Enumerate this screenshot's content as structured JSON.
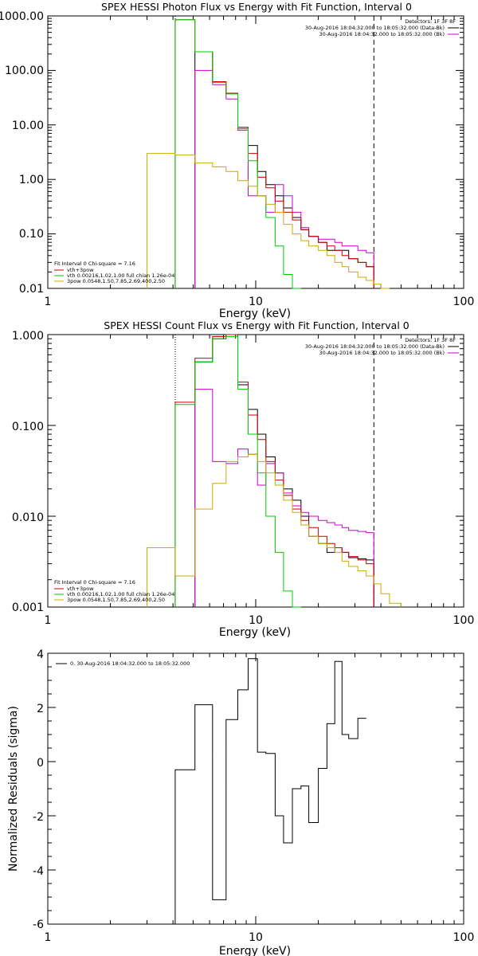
{
  "chart_data": [
    {
      "type": "line",
      "title": "SPEX HESSI Photon Flux vs Energy with Fit Function, Interval 0",
      "xlabel": "Energy (keV)",
      "ylabel": "",
      "xscale": "log",
      "yscale": "log",
      "xlim": [
        1,
        100
      ],
      "ylim": [
        0.01,
        1000
      ],
      "x_ticks": [
        "1",
        "10",
        "100"
      ],
      "y_ticks": [
        "1000.00",
        "100.00",
        "10.00",
        "1.00",
        "0.10",
        "0.01"
      ],
      "grid": false,
      "legend_position": "top-right",
      "legend": {
        "header": "Detectors: 1F 3F 8F",
        "entries": [
          {
            "label": "30-Aug-2016 18:04:32.000 to 18:05:32.000 (Data-Bk)",
            "color": "#000000"
          },
          {
            "label": "30-Aug-2016 18:04:32.000 to 18:05:32.000 (Bk)",
            "color": "#cc00cc"
          }
        ]
      },
      "fit_legend": {
        "header": "Fit Interval 0 Chi-square = 7.16",
        "entries": [
          {
            "label": "vth+3pow",
            "color": "#cc0000"
          },
          {
            "label": "vth 0.00216,1.02,1.00 full chian 1.26e-04",
            "color": "#00cc00"
          },
          {
            "label": "3pow 0.0548,1.50,7.85,2.69,400,2.50",
            "color": "#ccaa00"
          }
        ]
      },
      "vlines": [
        {
          "x": 4.1,
          "style": "dotted",
          "color": "#000000"
        },
        {
          "x": 37.0,
          "style": "dashed",
          "color": "#000000"
        }
      ],
      "bin_edges": [
        3.0,
        4.1,
        5.1,
        6.2,
        7.2,
        8.2,
        9.2,
        10.2,
        11.2,
        12.4,
        13.6,
        15.0,
        16.5,
        18.0,
        20.0,
        22.0,
        24.0,
        26.0,
        28.0,
        31.0,
        34.0,
        37.0,
        40.0,
        44.0,
        50.0
      ],
      "series": [
        {
          "name": "Data-Bk",
          "color": "#000000",
          "start_bin": 2,
          "values": [
            220,
            62,
            38,
            9,
            4.2,
            1.4,
            0.8,
            0.5,
            0.3,
            0.2,
            0.12,
            0.09,
            0.07,
            0.05,
            0.05,
            0.05,
            0.035,
            0.03,
            0.025
          ]
        },
        {
          "name": "Bk",
          "color": "#cc00cc",
          "start_bin": 2,
          "values": [
            100,
            55,
            30,
            8,
            0.5,
            0.5,
            0.25,
            0.8,
            0.5,
            0.25,
            0.13,
            0.09,
            0.08,
            0.08,
            0.07,
            0.06,
            0.06,
            0.05,
            0.045
          ]
        },
        {
          "name": "vth+3pow",
          "color": "#cc0000",
          "start_bin": 1,
          "values": [
            850,
            220,
            62,
            38,
            9,
            3,
            1.1,
            0.7,
            0.4,
            0.25,
            0.18,
            0.12,
            0.09,
            0.07,
            0.06,
            0.05,
            0.04,
            0.035,
            0.03,
            0.025
          ]
        },
        {
          "name": "vth",
          "color": "#00cc00",
          "start_bin": 1,
          "values": [
            850,
            220,
            60,
            37,
            8.5,
            2.2,
            0.5,
            0.2,
            0.06,
            0.018,
            0.01
          ]
        },
        {
          "name": "3pow",
          "color": "#ccaa00",
          "start_bin": 0,
          "values": [
            3.0,
            2.8,
            2.0,
            1.7,
            1.4,
            0.95,
            0.75,
            0.5,
            0.35,
            0.25,
            0.15,
            0.1,
            0.075,
            0.06,
            0.05,
            0.04,
            0.03,
            0.025,
            0.02,
            0.016,
            0.014,
            0.012,
            0.01
          ]
        }
      ]
    },
    {
      "type": "line",
      "title": "SPEX HESSI Count Flux vs Energy with Fit Function, Interval 0",
      "xlabel": "Energy (keV)",
      "ylabel": "",
      "xscale": "log",
      "yscale": "log",
      "xlim": [
        1,
        100
      ],
      "ylim": [
        0.001,
        1
      ],
      "x_ticks": [
        "1",
        "10",
        "100"
      ],
      "y_ticks": [
        "1.000",
        "0.100",
        "0.010",
        "0.001"
      ],
      "grid": false,
      "legend_position": "top-right",
      "legend": {
        "header": "Detectors: 1F 3F 8F",
        "entries": [
          {
            "label": "30-Aug-2016 18:04:32.000 to 18:05:32.000 (Data-Bk)",
            "color": "#000000"
          },
          {
            "label": "30-Aug-2016 18:04:32.000 to 18:05:32.000 (Bk)",
            "color": "#cc00cc"
          }
        ]
      },
      "fit_legend": {
        "header": "Fit Interval 0 Chi-square = 7.16",
        "entries": [
          {
            "label": "vth+3pow",
            "color": "#cc0000"
          },
          {
            "label": "vth 0.00216,1.02,1.00 full chian 1.26e-04",
            "color": "#00cc00"
          },
          {
            "label": "3pow 0.0548,1.50,7.85,2.69,400,2.50",
            "color": "#ccaa00"
          }
        ]
      },
      "vlines": [
        {
          "x": 4.1,
          "style": "dotted",
          "color": "#000000"
        },
        {
          "x": 37.0,
          "style": "dashed",
          "color": "#000000"
        }
      ],
      "bin_edges": [
        3.0,
        4.1,
        5.1,
        6.2,
        7.2,
        8.2,
        9.2,
        10.2,
        11.2,
        12.4,
        13.6,
        15.0,
        16.5,
        18.0,
        20.0,
        22.0,
        24.0,
        26.0,
        28.0,
        31.0,
        34.0,
        37.0,
        40.0,
        44.0,
        50.0
      ],
      "series": [
        {
          "name": "Data-Bk",
          "color": "#000000",
          "start_bin": 2,
          "values": [
            0.5,
            0.9,
            0.95,
            0.28,
            0.15,
            0.08,
            0.045,
            0.03,
            0.02,
            0.015,
            0.01,
            0.006,
            0.005,
            0.004,
            0.0045,
            0.004,
            0.0035,
            0.0034,
            0.0033
          ]
        },
        {
          "name": "Bk",
          "color": "#cc00cc",
          "start_bin": 2,
          "values": [
            0.25,
            0.04,
            0.038,
            0.055,
            0.048,
            0.022,
            0.038,
            0.03,
            0.018,
            0.013,
            0.011,
            0.01,
            0.009,
            0.0085,
            0.008,
            0.0075,
            0.007,
            0.0068,
            0.0066
          ]
        },
        {
          "name": "vth+3pow",
          "color": "#cc0000",
          "start_bin": 1,
          "values": [
            0.18,
            0.55,
            0.95,
            1.0,
            0.3,
            0.13,
            0.07,
            0.04,
            0.025,
            0.017,
            0.012,
            0.009,
            0.0075,
            0.006,
            0.005,
            0.0045,
            0.004,
            0.0036,
            0.0033,
            0.003
          ]
        },
        {
          "name": "vth",
          "color": "#00cc00",
          "start_bin": 1,
          "values": [
            0.17,
            0.5,
            0.9,
            0.95,
            0.25,
            0.08,
            0.03,
            0.01,
            0.004,
            0.0015,
            0.001
          ]
        },
        {
          "name": "3pow",
          "color": "#ccaa00",
          "start_bin": 0,
          "values": [
            0.0045,
            0.0022,
            0.012,
            0.023,
            0.04,
            0.045,
            0.048,
            0.04,
            0.03,
            0.022,
            0.015,
            0.011,
            0.008,
            0.006,
            0.005,
            0.0045,
            0.004,
            0.0032,
            0.0028,
            0.0025,
            0.0022,
            0.0018,
            0.0014,
            0.0011
          ]
        }
      ]
    },
    {
      "type": "line",
      "title": "",
      "xlabel": "Energy (keV)",
      "ylabel": "Normalized Residuals (sigma)",
      "xscale": "log",
      "yscale": "linear",
      "xlim": [
        1,
        100
      ],
      "ylim": [
        -6,
        4
      ],
      "x_ticks": [
        "1",
        "10",
        "100"
      ],
      "y_ticks": [
        "4",
        "2",
        "0",
        "-2",
        "-4",
        "-6"
      ],
      "grid": false,
      "legend_position": "top-left",
      "legend": {
        "header": "",
        "entries": [
          {
            "label": "0. 30-Aug-2016 18:04:32.000 to 18:05:32.000",
            "color": "#000000"
          }
        ]
      },
      "bin_edges": [
        4.1,
        5.1,
        6.2,
        7.2,
        8.2,
        9.2,
        10.2,
        11.2,
        12.4,
        13.6,
        15.0,
        16.5,
        18.0,
        20.0,
        22.0,
        24.0,
        26.0,
        28.0,
        31.0,
        34.0,
        37.0
      ],
      "series": [
        {
          "name": "residuals",
          "color": "#000000",
          "start_bin": 0,
          "values": [
            -0.3,
            2.1,
            -5.1,
            1.55,
            2.65,
            3.8,
            0.35,
            0.3,
            -2.0,
            -3.0,
            -1.0,
            -0.9,
            -2.25,
            -0.25,
            1.4,
            3.7,
            1.0,
            0.85,
            1.6
          ]
        }
      ]
    }
  ]
}
